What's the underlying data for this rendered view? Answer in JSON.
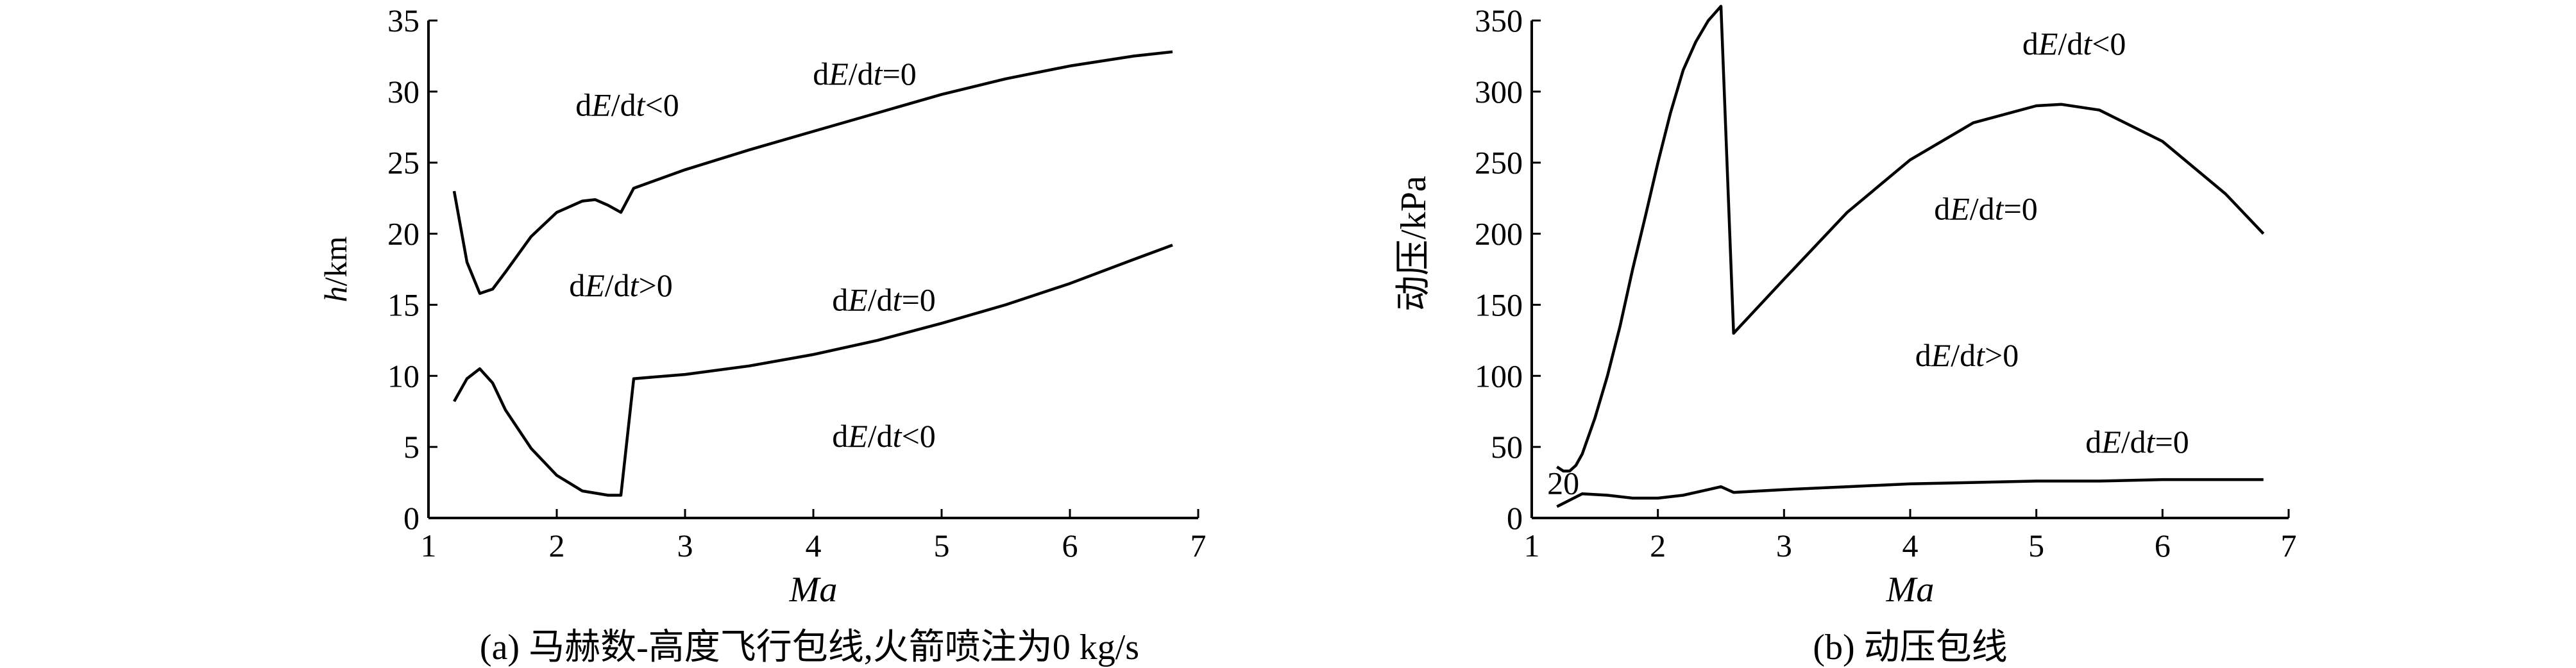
{
  "chart_data": [
    {
      "type": "line",
      "panel_caption": "(a) 马赫数-高度飞行包线,火箭喷注为0 kg/s",
      "xlabel": "Ma",
      "ylabel_italic": "h",
      "ylabel_unit": "/km",
      "xlim": [
        1,
        7
      ],
      "ylim": [
        0,
        35
      ],
      "xticks": [
        "1",
        "2",
        "3",
        "4",
        "5",
        "6",
        "7"
      ],
      "yticks": [
        "0",
        "5",
        "10",
        "15",
        "20",
        "25",
        "30",
        "35"
      ],
      "series": [
        {
          "x": [
            1.2,
            1.3,
            1.4,
            1.5,
            1.6,
            1.8,
            2.0,
            2.2,
            2.3,
            2.4,
            2.5,
            2.6,
            3.0,
            3.5,
            4.0,
            4.5,
            5.0,
            5.5,
            6.0,
            6.5,
            6.8
          ],
          "y": [
            23,
            18,
            15.8,
            16.1,
            17.3,
            19.8,
            21.5,
            22.3,
            22.4,
            22.0,
            21.5,
            23.2,
            24.5,
            25.9,
            27.2,
            28.5,
            29.8,
            30.9,
            31.8,
            32.5,
            32.8
          ]
        },
        {
          "x": [
            1.2,
            1.3,
            1.4,
            1.5,
            1.6,
            1.8,
            2.0,
            2.2,
            2.4,
            2.5,
            2.6,
            3.0,
            3.5,
            4.0,
            4.5,
            5.0,
            5.5,
            6.0,
            6.5,
            6.8
          ],
          "y": [
            8.2,
            9.8,
            10.5,
            9.5,
            7.6,
            4.9,
            3.0,
            1.9,
            1.6,
            1.6,
            9.8,
            10.1,
            10.7,
            11.5,
            12.5,
            13.7,
            15.0,
            16.5,
            18.2,
            19.2
          ]
        }
      ],
      "annotations": [
        {
          "text_pre": "d",
          "text_italic": "E",
          "text_mid": "/d",
          "text_italic2": "t",
          "text_post": "<0",
          "x": 2.55,
          "y": 28.3
        },
        {
          "text_pre": "d",
          "text_italic": "E",
          "text_mid": "/d",
          "text_italic2": "t",
          "text_post": "=0",
          "x": 4.4,
          "y": 30.5
        },
        {
          "text_pre": "d",
          "text_italic": "E",
          "text_mid": "/d",
          "text_italic2": "t",
          "text_post": ">0",
          "x": 2.5,
          "y": 15.6
        },
        {
          "text_pre": "d",
          "text_italic": "E",
          "text_mid": "/d",
          "text_italic2": "t",
          "text_post": "=0",
          "x": 4.55,
          "y": 14.6
        },
        {
          "text_pre": "d",
          "text_italic": "E",
          "text_mid": "/d",
          "text_italic2": "t",
          "text_post": "<0",
          "x": 4.55,
          "y": 5.0
        }
      ]
    },
    {
      "type": "line",
      "panel_caption": "(b) 动压包线",
      "xlabel": "Ma",
      "ylabel_cn": "动压",
      "ylabel_unit": "/kPa",
      "xlim": [
        1,
        7
      ],
      "ylim": [
        0,
        360
      ],
      "xticks": [
        "1",
        "2",
        "3",
        "4",
        "5",
        "6",
        "7"
      ],
      "yticks": [
        "0",
        "50",
        "100",
        "150",
        "200",
        "250",
        "300",
        "350"
      ],
      "series": [
        {
          "x": [
            1.2,
            1.25,
            1.3,
            1.35,
            1.4,
            1.5,
            1.6,
            1.7,
            1.8,
            1.9,
            2.0,
            2.1,
            2.2,
            2.3,
            2.4,
            2.5,
            2.6,
            3.0,
            3.5,
            4.0,
            4.5,
            5.0,
            5.2,
            5.5,
            6.0,
            6.5,
            6.8
          ],
          "y": [
            36,
            33,
            33,
            37,
            45,
            70,
            100,
            135,
            175,
            212,
            250,
            285,
            315,
            335,
            350,
            360,
            130,
            168,
            215,
            252,
            278,
            290,
            291,
            287,
            265,
            228,
            200
          ]
        },
        {
          "x": [
            1.2,
            1.4,
            1.6,
            1.8,
            2.0,
            2.2,
            2.4,
            2.5,
            2.6,
            3.0,
            3.5,
            4.0,
            4.5,
            5.0,
            5.5,
            6.0,
            6.5,
            6.8
          ],
          "y": [
            8,
            17,
            16,
            14,
            14,
            16,
            20,
            22,
            18,
            20,
            22,
            24,
            25,
            26,
            26,
            27,
            27,
            27
          ]
        }
      ],
      "annotations": [
        {
          "text_pre": "d",
          "text_italic": "E",
          "text_mid": "/d",
          "text_italic2": "t",
          "text_post": "<0",
          "x": 5.3,
          "y": 326
        },
        {
          "text_pre": "d",
          "text_italic": "E",
          "text_mid": "/d",
          "text_italic2": "t",
          "text_post": "=0",
          "x": 4.6,
          "y": 210
        },
        {
          "text_pre": "d",
          "text_italic": "E",
          "text_mid": "/d",
          "text_italic2": "t",
          "text_post": ">0",
          "x": 4.45,
          "y": 107
        },
        {
          "text_pre": "d",
          "text_italic": "E",
          "text_mid": "/d",
          "text_italic2": "t",
          "text_post": "=0",
          "x": 5.8,
          "y": 46
        },
        {
          "plain": "20",
          "x": 1.25,
          "y": 17
        }
      ]
    }
  ]
}
